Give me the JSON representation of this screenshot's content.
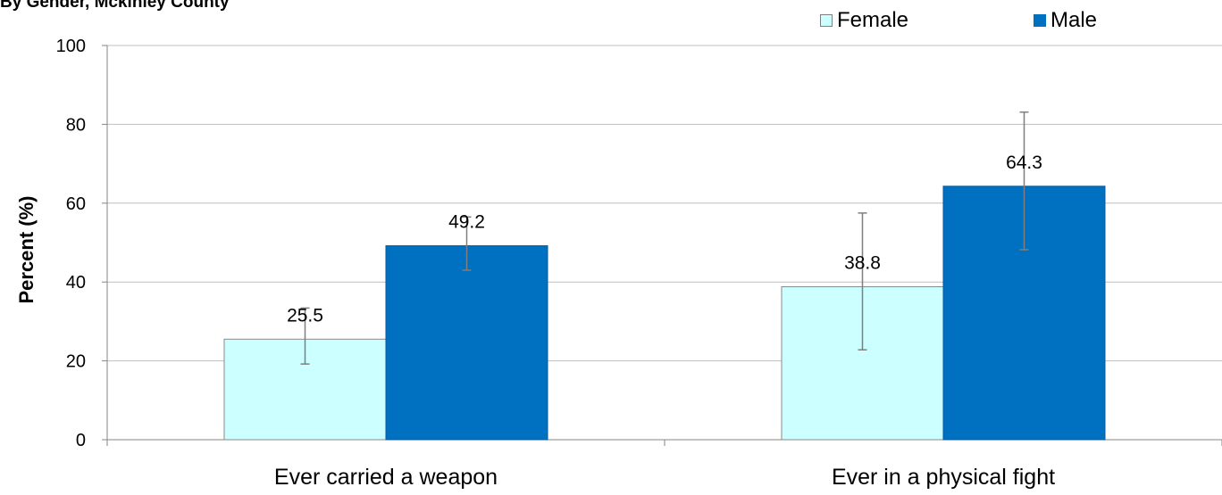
{
  "chart_data": {
    "type": "bar",
    "title": "By Gender, Mckinley County",
    "ylabel": "Percent (%)",
    "xlabel": "",
    "categories": [
      "Ever carried a weapon",
      "Ever in a physical fight"
    ],
    "series": [
      {
        "name": "Female",
        "color": "#ccffff",
        "values": [
          25.5,
          38.8
        ],
        "error_low": [
          19.2,
          22.8
        ],
        "error_high": [
          33.4,
          57.5
        ]
      },
      {
        "name": "Male",
        "color": "#0070c0",
        "values": [
          49.2,
          64.3
        ],
        "error_low": [
          43.0,
          48.2
        ],
        "error_high": [
          56.5,
          83.1
        ]
      }
    ],
    "ylim": [
      0,
      100
    ],
    "yticks": [
      0,
      20,
      40,
      60,
      80,
      100
    ],
    "grid": true,
    "legend_position": "top-right",
    "data_labels": [
      "25.5",
      "38.8",
      "49.2",
      "64.3"
    ]
  }
}
